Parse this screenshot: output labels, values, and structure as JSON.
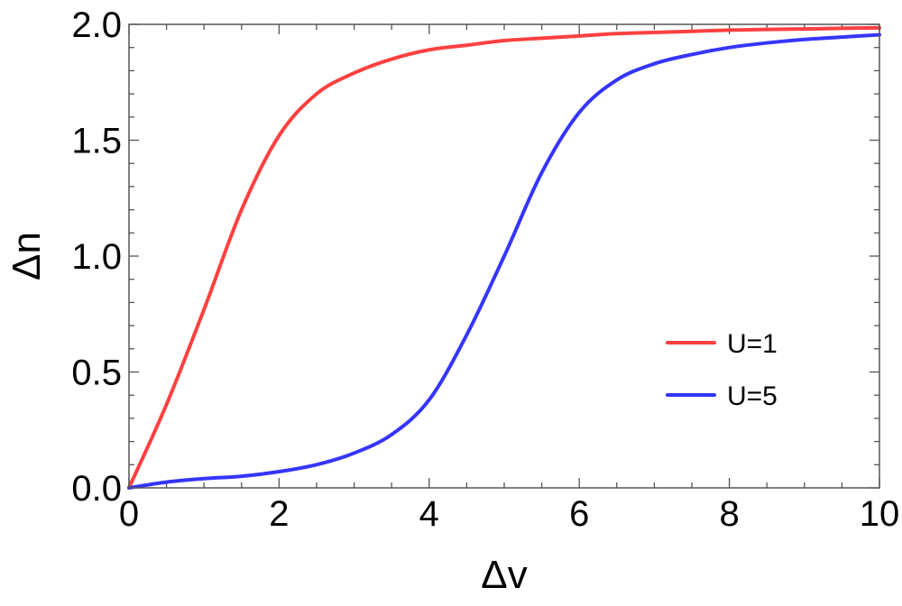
{
  "chart_data": {
    "type": "line",
    "title": "",
    "xlabel": "Δv",
    "ylabel": "Δn",
    "xlim": [
      0,
      10
    ],
    "ylim": [
      0,
      2
    ],
    "x_ticks": [
      0,
      2,
      4,
      6,
      8,
      10
    ],
    "x_tick_labels": [
      "0",
      "2",
      "4",
      "6",
      "8",
      "10"
    ],
    "y_ticks": [
      0,
      0.5,
      1,
      1.5,
      2
    ],
    "y_tick_labels": [
      "0.0",
      "0.5",
      "1.0",
      "1.5",
      "2.0"
    ],
    "x_minor_step": 0.5,
    "y_minor_step": 0.1,
    "grid": false,
    "legend": {
      "placement": "bottom-right"
    },
    "x": [
      0,
      0.5,
      1,
      1.5,
      2,
      2.5,
      3,
      3.5,
      4,
      4.5,
      5,
      5.5,
      6,
      6.5,
      7,
      7.5,
      8,
      8.5,
      9,
      9.5,
      10
    ],
    "series": [
      {
        "name": "U=1",
        "color": "#ff4040",
        "values": [
          0,
          0.36,
          0.77,
          1.2,
          1.52,
          1.7,
          1.79,
          1.85,
          1.89,
          1.91,
          1.93,
          1.94,
          1.95,
          1.96,
          1.965,
          1.97,
          1.975,
          1.978,
          1.98,
          1.983,
          1.985
        ]
      },
      {
        "name": "U=5",
        "color": "#3535ff",
        "values": [
          0,
          0.025,
          0.04,
          0.05,
          0.07,
          0.1,
          0.15,
          0.23,
          0.38,
          0.66,
          1.0,
          1.36,
          1.62,
          1.76,
          1.83,
          1.87,
          1.9,
          1.92,
          1.935,
          1.945,
          1.955
        ]
      }
    ]
  }
}
